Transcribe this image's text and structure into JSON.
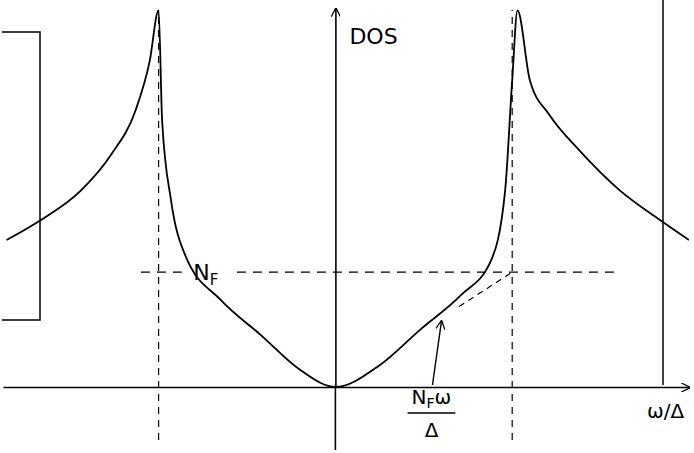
{
  "chart_data": {
    "type": "line",
    "xlabel": "ω/Δ",
    "ylabel": "DOS",
    "xlim": [
      -1.88,
      2.0
    ],
    "ylim": [
      0,
      3.3
    ],
    "xticks": [
      -1,
      1
    ],
    "yticks": [],
    "tick_labels": false,
    "grid": false,
    "series": [
      {
        "x": [
          -1.86,
          -1.67,
          -1.44,
          -1.27,
          -1.13,
          -1.05,
          -1.0,
          -0.98,
          -0.93,
          -0.85,
          -0.65,
          -0.42,
          -0.2,
          0,
          0.25,
          0.48,
          0.71,
          0.88,
          0.96,
          1.0,
          1.03,
          1.1,
          1.21,
          1.38,
          1.61,
          1.84,
          2.0
        ],
        "values": [
          1.28,
          1.45,
          1.71,
          2.02,
          2.41,
          2.84,
          3.28,
          2.32,
          1.63,
          1.15,
          0.76,
          0.45,
          0.15,
          0,
          0.19,
          0.5,
          0.8,
          1.1,
          1.71,
          2.67,
          3.28,
          2.67,
          2.37,
          2.06,
          1.71,
          1.45,
          1.28
        ],
        "color": "#000000",
        "line_style": "solid"
      },
      {
        "x": [
          0.7,
          1
        ],
        "values": [
          0.7,
          1
        ],
        "color": "#000000",
        "line_style": "dashed"
      }
    ],
    "reference_lines": [
      {
        "axis": "y",
        "value": 1,
        "x_range": [
          -1.1,
          1.6
        ],
        "label": "N",
        "label_sub": "F",
        "line_style": "dashed"
      }
    ],
    "annotations": [
      {
        "numerator": "N",
        "numerator_sub": "F",
        "numerator_rest": "ω",
        "denominator": "Δ",
        "point": [
          0.6,
          0.6
        ]
      }
    ]
  }
}
